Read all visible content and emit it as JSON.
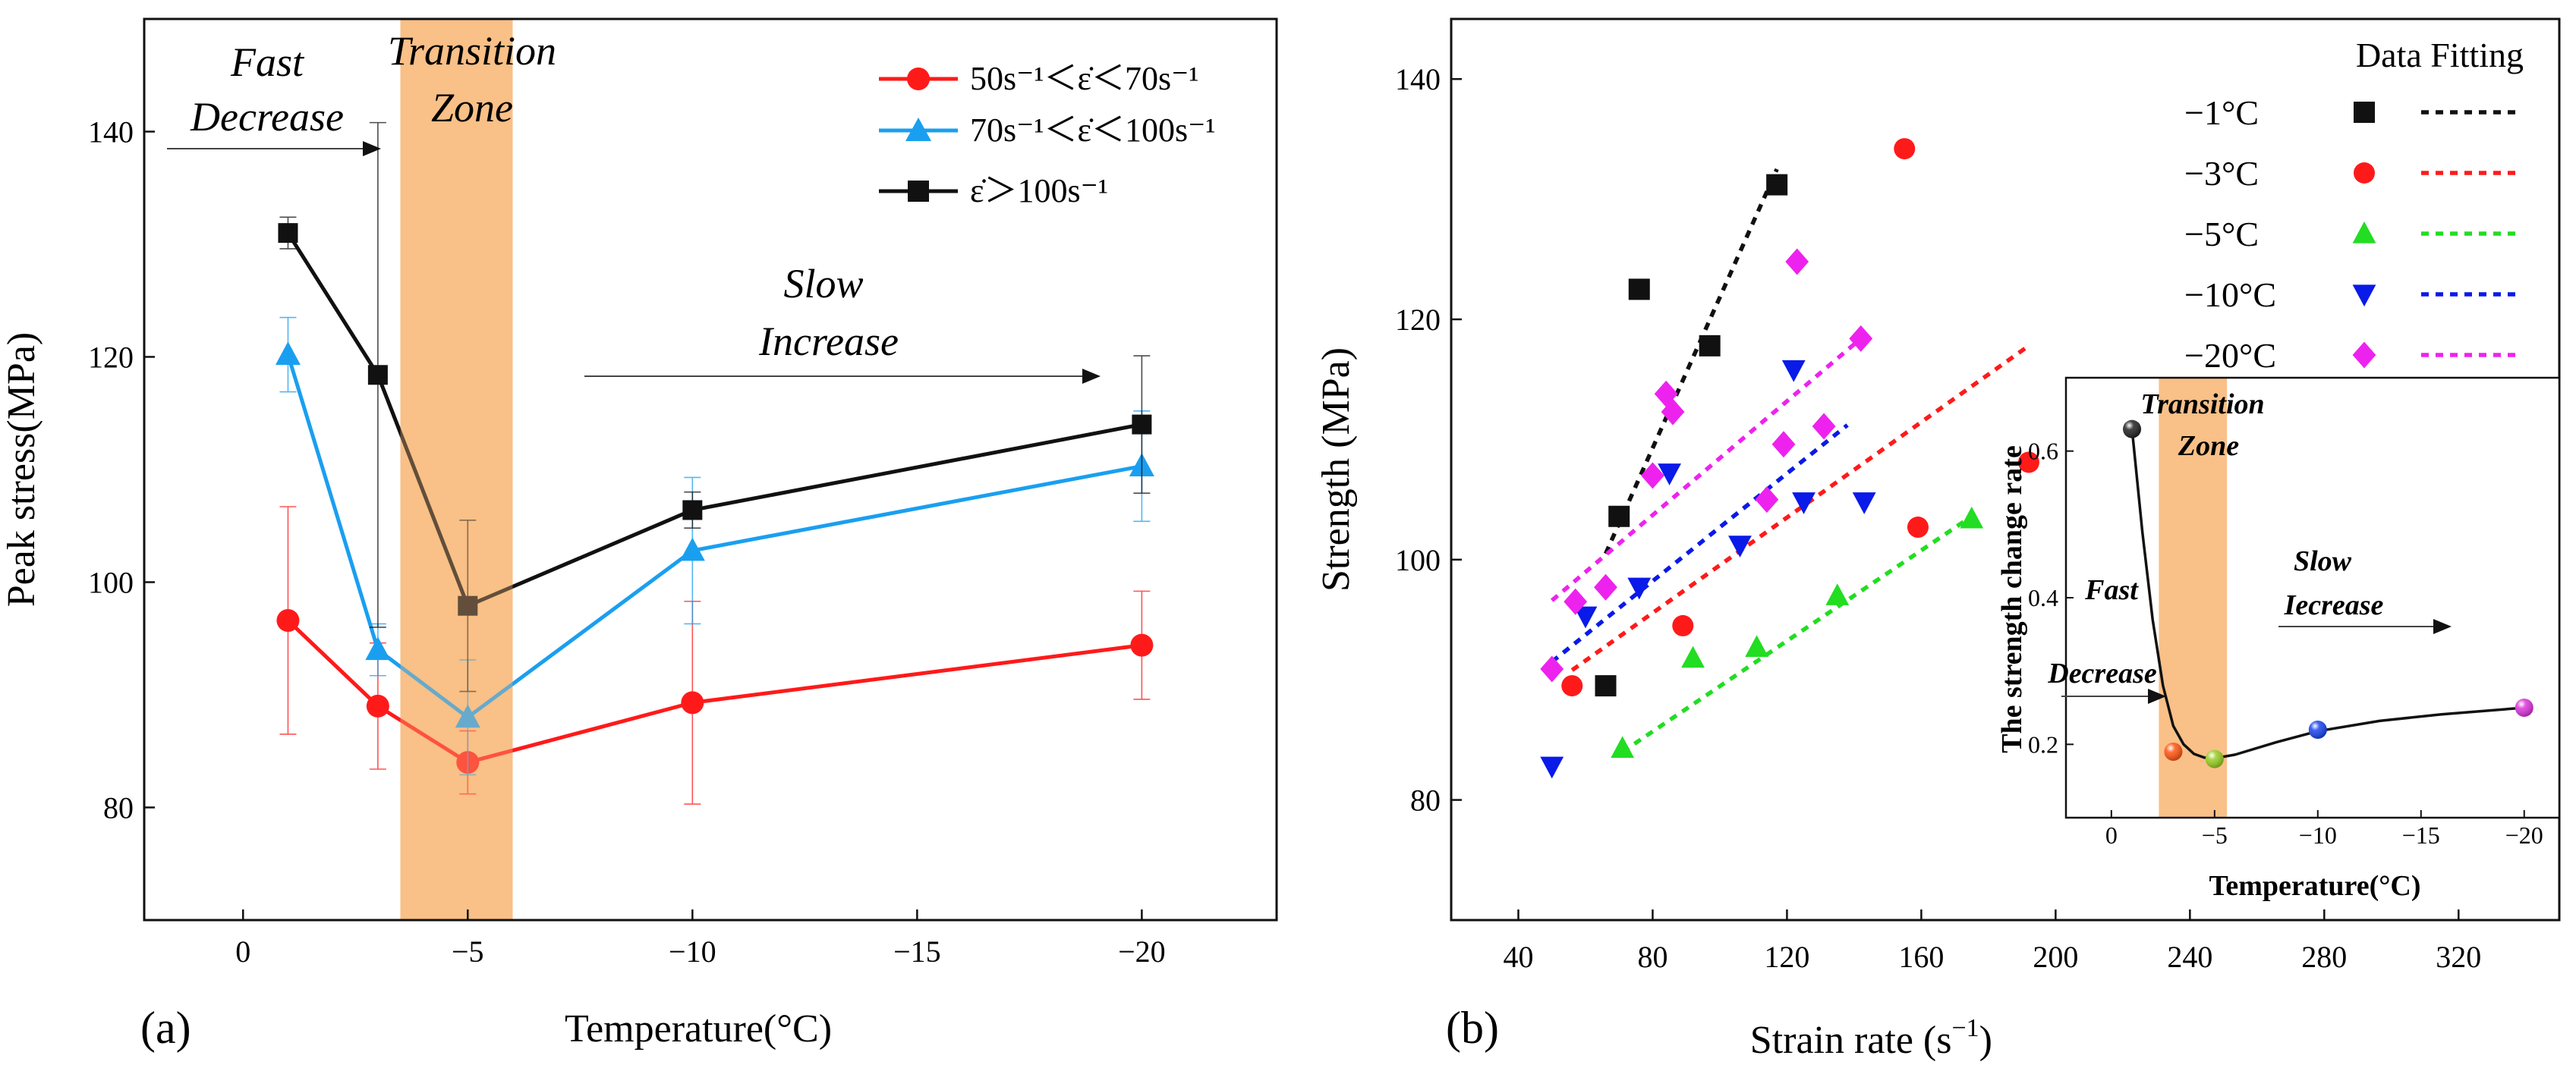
{
  "chart_data": [
    {
      "type": "line",
      "panel_label": "(a)",
      "xlabel": "Temperature(°C)",
      "ylabel": "Peak stress(MPa)",
      "x_ticks": [
        0,
        -5,
        -10,
        -15,
        -20
      ],
      "x_tick_labels": [
        "0",
        "−5",
        "−10",
        "−15",
        "−20"
      ],
      "y_ticks": [
        80,
        100,
        120,
        140
      ],
      "xlim": [
        2.2,
        -23
      ],
      "ylim": [
        70,
        150
      ],
      "x": [
        -1,
        -3,
        -5,
        -10,
        -20
      ],
      "series": [
        {
          "name": "50s⁻¹＜ε̇＜70s⁻¹",
          "color": "#ff1a1a",
          "marker": "circle",
          "values": [
            96.6,
            89.0,
            84.0,
            89.3,
            94.4
          ],
          "errors": [
            10.1,
            5.6,
            2.8,
            9.0,
            4.8
          ]
        },
        {
          "name": "70s⁻¹＜ε̇＜100s⁻¹",
          "color": "#1a9ff0",
          "marker": "triangle",
          "values": [
            120.2,
            94.0,
            88.0,
            102.8,
            110.3
          ],
          "errors": [
            3.3,
            2.3,
            5.1,
            6.5,
            4.9
          ]
        },
        {
          "name": "ε̇＞100s⁻¹",
          "color": "#111111",
          "marker": "square",
          "values": [
            131.0,
            118.4,
            97.9,
            106.4,
            114.0
          ],
          "errors": [
            1.4,
            22.4,
            7.6,
            1.6,
            6.1
          ]
        }
      ],
      "shaded_band": {
        "from": -3.5,
        "to": -6.0,
        "color": "#f9c088"
      },
      "annotations": {
        "fast_decrease": [
          "Fast",
          "Decrease"
        ],
        "transition_zone": [
          "Transition",
          "Zone"
        ],
        "slow_increase": [
          "Slow",
          "Increase"
        ]
      },
      "legend_position": "top-right"
    },
    {
      "type": "scatter",
      "panel_label": "(b)",
      "xlabel": "Strain rate (s",
      "xlabel_sup": "−1",
      "xlabel_end": ")",
      "ylabel": "Strength (MPa)",
      "x_ticks": [
        40,
        80,
        120,
        160,
        200,
        240,
        280,
        320
      ],
      "y_ticks": [
        80,
        100,
        120,
        140
      ],
      "xlim": [
        20,
        350
      ],
      "ylim": [
        70,
        145
      ],
      "legend_header": "Data Fitting",
      "series": [
        {
          "name": "−1°C",
          "color": "#111111",
          "marker": "square",
          "points": [
            [
              66,
              89.5
            ],
            [
              70,
              103.6
            ],
            [
              76,
              122.5
            ],
            [
              97,
              117.8
            ],
            [
              117,
              131.2
            ]
          ],
          "fit": [
            [
              66,
              100.5
            ],
            [
              117,
              132.5
            ]
          ]
        },
        {
          "name": "−3°C",
          "color": "#ff1a1a",
          "marker": "circle",
          "points": [
            [
              56,
              89.5
            ],
            [
              89,
              94.5
            ],
            [
              155,
              134.2
            ],
            [
              159,
              102.7
            ],
            [
              192,
              108.1
            ]
          ],
          "fit": [
            [
              56,
              90.8
            ],
            [
              192,
              117.8
            ]
          ]
        },
        {
          "name": "−5°C",
          "color": "#22dd22",
          "marker": "triangle",
          "points": [
            [
              71,
              84.3
            ],
            [
              92,
              91.8
            ],
            [
              111,
              92.7
            ],
            [
              135,
              97.0
            ],
            [
              175,
              103.4
            ]
          ],
          "fit": [
            [
              71,
              84.0
            ],
            [
              175,
              103.6
            ]
          ]
        },
        {
          "name": "−10°C",
          "color": "#0a1ae8",
          "marker": "triangle-down",
          "points": [
            [
              50,
              82.8
            ],
            [
              60,
              95.3
            ],
            [
              76,
              97.7
            ],
            [
              85,
              107.2
            ],
            [
              106,
              101.2
            ],
            [
              122,
              115.8
            ],
            [
              125,
              104.8
            ],
            [
              143,
              104.8
            ]
          ],
          "fit": [
            [
              50,
              91.5
            ],
            [
              138,
              111.2
            ]
          ]
        },
        {
          "name": "−20°C",
          "color": "#ee22ee",
          "marker": "diamond",
          "points": [
            [
              50,
              90.9
            ],
            [
              57,
              96.5
            ],
            [
              66,
              97.7
            ],
            [
              80,
              107.0
            ],
            [
              84,
              113.8
            ],
            [
              86,
              112.3
            ],
            [
              114,
              105.0
            ],
            [
              119,
              109.6
            ],
            [
              123,
              124.8
            ],
            [
              131,
              111.1
            ],
            [
              142,
              118.4
            ]
          ],
          "fit": [
            [
              50,
              96.6
            ],
            [
              142,
              118.4
            ]
          ]
        }
      ],
      "legend_position": "top-right"
    },
    {
      "type": "line",
      "panel": "inset",
      "xlabel": "Temperature(°C)",
      "ylabel": "The strength change rate",
      "x_ticks": [
        0,
        -5,
        -10,
        -15,
        -20
      ],
      "x_tick_labels": [
        "0",
        "−5",
        "−10",
        "−15",
        "−20"
      ],
      "y_ticks": [
        0.2,
        0.4,
        0.6
      ],
      "y_tick_labels": [
        "0.2",
        "0.4",
        "0.6"
      ],
      "xlim": [
        2.2,
        -21.7
      ],
      "ylim": [
        0.1,
        0.7
      ],
      "points": [
        {
          "x": -1,
          "y": 0.63,
          "color": "#222222"
        },
        {
          "x": -3,
          "y": 0.19,
          "color": "#ff5511"
        },
        {
          "x": -5,
          "y": 0.18,
          "color": "#99cc22"
        },
        {
          "x": -10,
          "y": 0.22,
          "color": "#1a44ee"
        },
        {
          "x": -20,
          "y": 0.25,
          "color": "#dd33dd"
        }
      ],
      "curve": [
        [
          -1,
          0.63
        ],
        [
          -1.5,
          0.49
        ],
        [
          -2,
          0.37
        ],
        [
          -2.5,
          0.28
        ],
        [
          -3,
          0.225
        ],
        [
          -3.5,
          0.2
        ],
        [
          -4,
          0.187
        ],
        [
          -4.5,
          0.182
        ],
        [
          -5,
          0.181
        ],
        [
          -6,
          0.186
        ],
        [
          -8,
          0.203
        ],
        [
          -10,
          0.218
        ],
        [
          -13,
          0.232
        ],
        [
          -16,
          0.241
        ],
        [
          -20,
          0.25
        ]
      ],
      "shaded_band": {
        "from": -2.3,
        "to": -5.6,
        "color": "#f9c088"
      },
      "annotations": {
        "transition_zone": [
          "Transition",
          "Zone"
        ],
        "fast_decrease": [
          "Fast",
          "Decrease"
        ],
        "slow_increase": [
          "Slow",
          "Iecrease"
        ]
      }
    }
  ]
}
